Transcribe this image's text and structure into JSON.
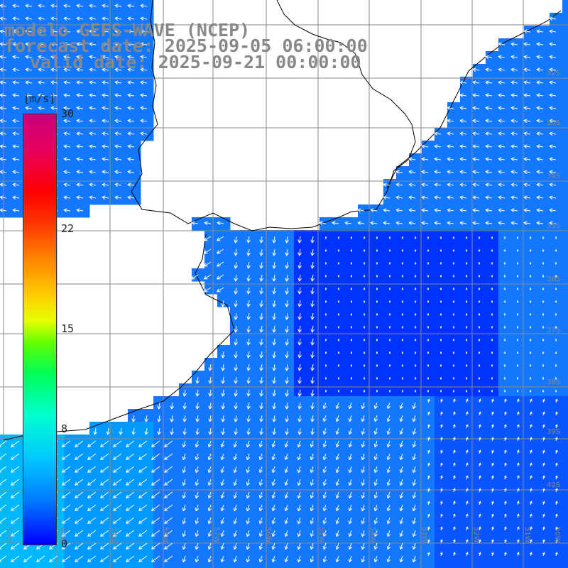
{
  "title": {
    "line1": "modelo GEFS-WAVE (NCEP)",
    "line2": "forecast date: 2025-09-05 06:00:00",
    "line3": "valid date: 2025-09-21 00:00:00"
  },
  "colorbar": {
    "unit": "[m/s]",
    "ticks": [
      {
        "label": "30",
        "value": 30
      },
      {
        "label": "22",
        "value": 22
      },
      {
        "label": "15",
        "value": 15
      },
      {
        "label": "8",
        "value": 8
      },
      {
        "label": "0",
        "value": 0
      }
    ],
    "min": 0,
    "max": 30
  },
  "lon_labels": [
    "61W",
    "60W",
    "59W",
    "58W",
    "57W",
    "56W",
    "55W",
    "54W",
    "53W",
    "52W",
    "51W",
    "50W"
  ],
  "lat_labels": [
    "32S",
    "33S",
    "34S",
    "35S",
    "36S",
    "37S",
    "38S",
    "39S",
    "40S"
  ],
  "colors": {
    "land": "#ffffff",
    "coast": "#000000",
    "grid": "#888888",
    "arrow": "#ffffff",
    "title": "#888888"
  }
}
